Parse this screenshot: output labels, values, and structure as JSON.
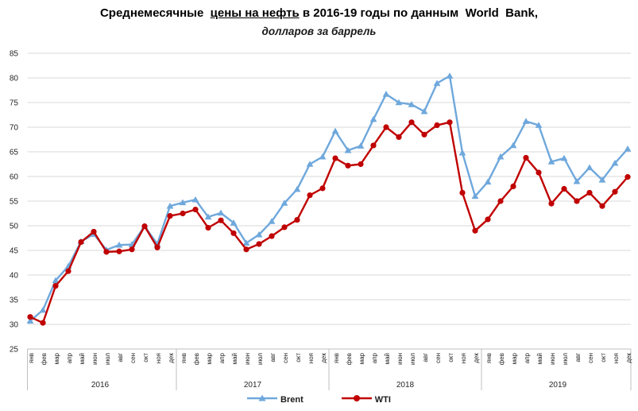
{
  "title": {
    "prefix": "Среднемесячные  ",
    "underlined": "цены на нефть",
    "suffix": " в 2016-19 годы по данным  World  Bank,"
  },
  "subtitle": "долларов за баррель",
  "colors": {
    "brent": "#6FA8DC",
    "wti": "#C00000",
    "grid": "#D9D9D9",
    "axis": "#BFBFBF",
    "label_text": "#262626"
  },
  "chart_data": {
    "type": "line",
    "title": "Среднемесячные цены на нефть в 2016-19 годы по данным World Bank,",
    "subtitle": "долларов за баррель",
    "ylabel": "долларов за баррель",
    "xlabel": "",
    "ylim": [
      25,
      85
    ],
    "ytick_step": 5,
    "grid": true,
    "legend_position": "bottom",
    "months": [
      "янв",
      "фев",
      "мар",
      "апр",
      "май",
      "июн",
      "июл",
      "авг",
      "сен",
      "окт",
      "ноя",
      "дек"
    ],
    "years": [
      "2016",
      "2017",
      "2018",
      "2019"
    ],
    "series": [
      {
        "name": "Brent",
        "marker": "triangle",
        "color": "#6FA8DC",
        "values": [
          30.7,
          32.9,
          38.9,
          41.8,
          46.8,
          48.3,
          45.1,
          46.1,
          46.2,
          49.9,
          46.3,
          54.0,
          54.7,
          55.3,
          51.8,
          52.6,
          50.6,
          46.5,
          48.2,
          50.9,
          54.6,
          57.4,
          62.5,
          64.0,
          69.2,
          65.3,
          66.2,
          71.6,
          76.7,
          75.0,
          74.6,
          73.2,
          78.9,
          80.4,
          64.8,
          56.0,
          58.9,
          64.0,
          66.3,
          71.2,
          70.4,
          63.0,
          63.7,
          59.0,
          61.8,
          59.3,
          62.7,
          65.6
        ]
      },
      {
        "name": "WTI",
        "marker": "circle",
        "color": "#C00000",
        "values": [
          31.5,
          30.3,
          37.8,
          40.8,
          46.7,
          48.8,
          44.7,
          44.8,
          45.2,
          49.9,
          45.6,
          52.0,
          52.5,
          53.3,
          49.6,
          51.1,
          48.5,
          45.2,
          46.3,
          47.9,
          49.7,
          51.2,
          56.2,
          57.6,
          63.7,
          62.2,
          62.5,
          66.3,
          70.0,
          68.0,
          71.0,
          68.5,
          70.4,
          71.0,
          56.7,
          49.0,
          51.3,
          55.0,
          58.0,
          63.8,
          60.8,
          54.5,
          57.5,
          55.0,
          56.7,
          54.0,
          56.9,
          59.9
        ]
      }
    ]
  }
}
